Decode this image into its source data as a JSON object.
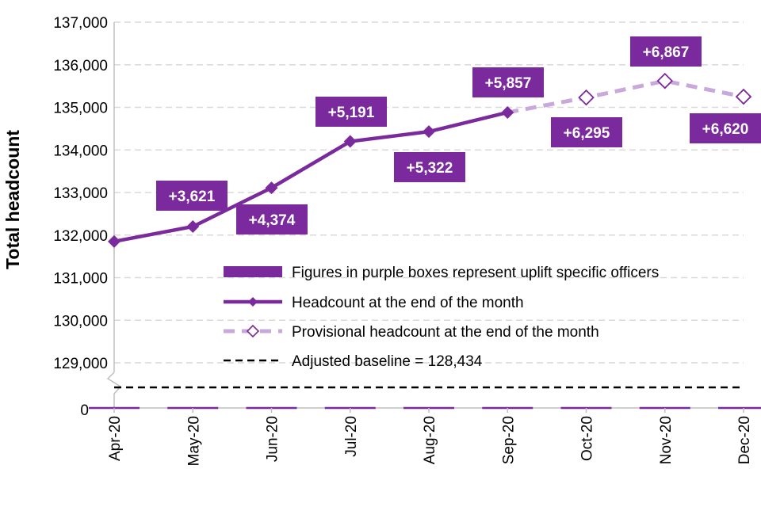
{
  "chart_data": {
    "type": "line",
    "ylabel": "Total headcount",
    "ylim": [
      128000,
      137000
    ],
    "yticks": [
      129000,
      130000,
      131000,
      132000,
      133000,
      134000,
      135000,
      136000,
      137000
    ],
    "ytick_labels": [
      "129,000",
      "130,000",
      "131,000",
      "132,000",
      "133,000",
      "134,000",
      "135,000",
      "136,000",
      "137,000"
    ],
    "y_axis_break_label": "0",
    "grid": "horizontal dashed",
    "categories": [
      "Apr-20",
      "May-20",
      "Jun-20",
      "Jul-20",
      "Aug-20",
      "Sep-20",
      "Oct-20",
      "Nov-20",
      "Dec-20"
    ],
    "series": [
      {
        "name": "Headcount at the end of the month",
        "color": "#7a2a9c",
        "style": "solid",
        "marker": "diamond-filled",
        "points": [
          {
            "x": "Apr-20",
            "y": 131850
          },
          {
            "x": "May-20",
            "y": 132200
          },
          {
            "x": "Jun-20",
            "y": 133110
          },
          {
            "x": "Jul-20",
            "y": 134200
          },
          {
            "x": "Aug-20",
            "y": 134430
          },
          {
            "x": "Sep-20",
            "y": 134880
          }
        ]
      },
      {
        "name": "Provisional headcount at the end of the month",
        "color": "#c9a8dc",
        "style": "dashed",
        "marker": "diamond-open",
        "points": [
          {
            "x": "Sep-20",
            "y": 134880
          },
          {
            "x": "Oct-20",
            "y": 135230
          },
          {
            "x": "Nov-20",
            "y": 135620
          },
          {
            "x": "Dec-20",
            "y": 135250
          }
        ]
      },
      {
        "name": "Adjusted baseline = 128,434",
        "color": "#000000",
        "style": "dashed",
        "value": 128434
      }
    ],
    "uplift_boxes": [
      {
        "x": "May-20",
        "label": "+3,621",
        "position": "above"
      },
      {
        "x": "Jun-20",
        "label": "+4,374",
        "position": "below"
      },
      {
        "x": "Jul-20",
        "label": "+5,191",
        "position": "above"
      },
      {
        "x": "Aug-20",
        "label": "+5,322",
        "position": "below"
      },
      {
        "x": "Sep-20",
        "label": "+5,857",
        "position": "above"
      },
      {
        "x": "Oct-20",
        "label": "+6,295",
        "position": "below"
      },
      {
        "x": "Nov-20",
        "label": "+6,867",
        "position": "above"
      },
      {
        "x": "Dec-20",
        "label": "+6,620",
        "position": "below"
      }
    ],
    "legend": {
      "placement": "bottom-right",
      "entries": [
        {
          "label": "Figures in purple boxes represent uplift specific officers",
          "symbol": "bar",
          "color": "#7a2a9c"
        },
        {
          "label": "Headcount at the end of the month",
          "symbol": "line-diamond-filled",
          "color": "#7a2a9c"
        },
        {
          "label": "Provisional headcount at the end of the month",
          "symbol": "dashed-diamond-open",
          "color": "#c9a8dc"
        },
        {
          "label": "Adjusted baseline = 128,434",
          "symbol": "dashed",
          "color": "#000000"
        }
      ]
    },
    "colors": {
      "accent": "#7a2a9c",
      "provisional": "#c9a8dc",
      "box_fill": "#7a2a9c",
      "grid": "#d9d9d9"
    }
  }
}
